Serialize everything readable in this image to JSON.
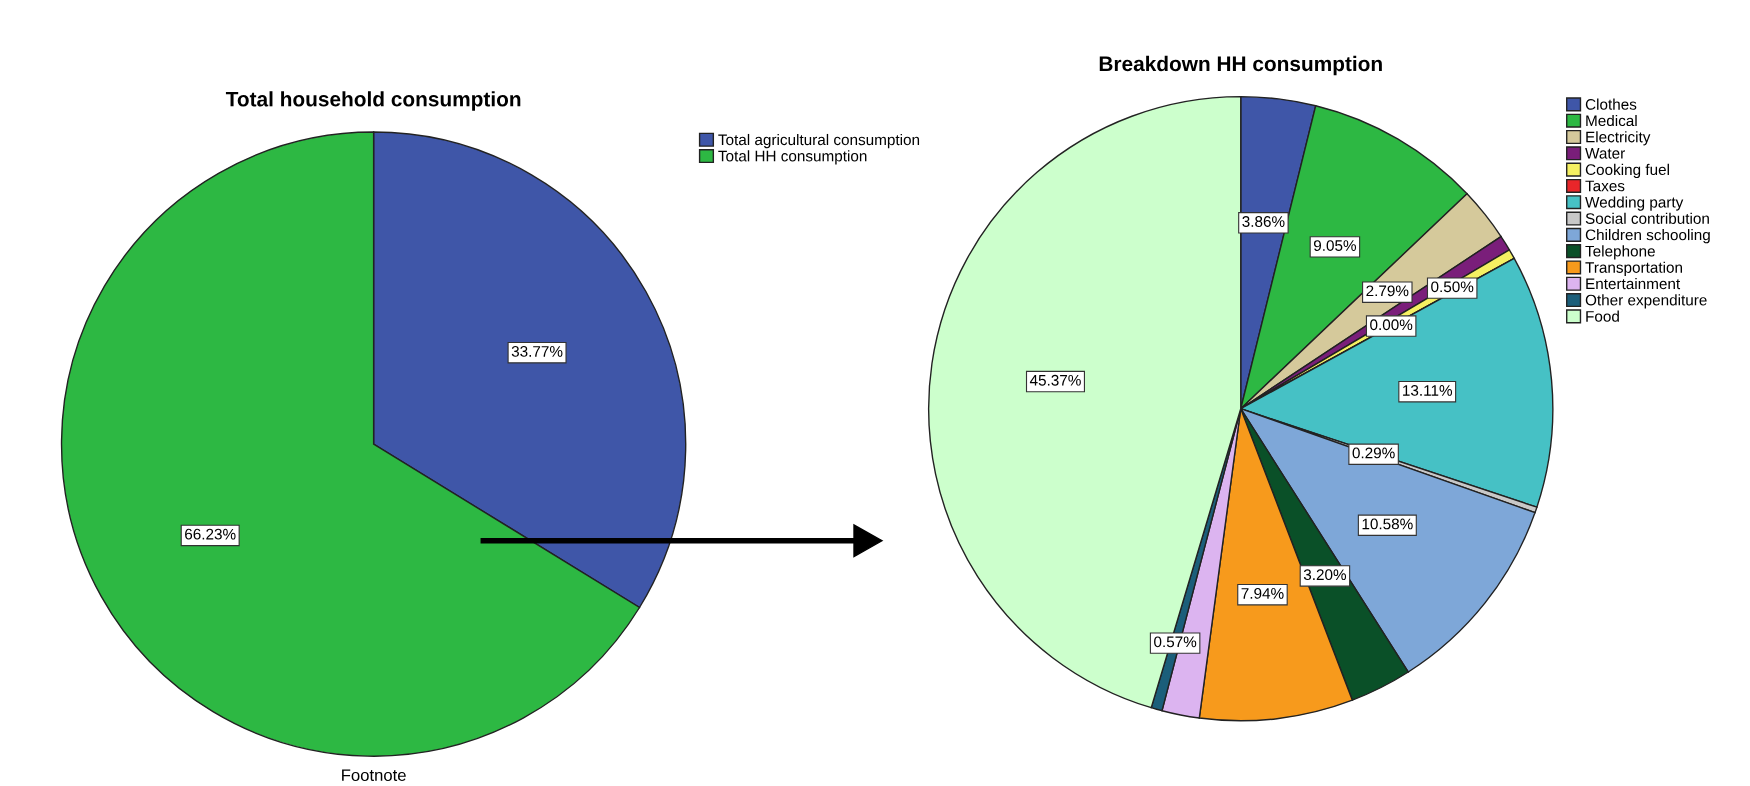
{
  "chart_data": [
    {
      "type": "pie",
      "title": "Total household consumption",
      "categories": [
        "Total agricultural consumption",
        "Total HH consumption"
      ],
      "values": [
        33.77,
        66.23
      ],
      "colors": [
        "#3f56a8",
        "#2db843"
      ],
      "value_labels": [
        "33.77%",
        "66.23%"
      ],
      "legend": "top right",
      "annotations": [
        "Footnote"
      ]
    },
    {
      "type": "pie",
      "title": "Breakdown HH consumption",
      "categories": [
        "Clothes",
        "Medical",
        "Electricity",
        "Water",
        "Cooking fuel",
        "Taxes",
        "Wedding party",
        "Social contribution",
        "Children schooling",
        "Telephone",
        "Transportation",
        "Entertainment",
        "Other expenditure",
        "Food"
      ],
      "values": [
        3.86,
        9.05,
        2.79,
        0.8,
        0.5,
        0.0,
        13.11,
        0.29,
        10.58,
        3.2,
        7.94,
        1.94,
        0.57,
        45.37
      ],
      "value_labels": [
        "3.86%",
        "9.05%",
        "2.79%",
        null,
        "0.50%",
        "0.00%",
        "13.11%",
        "0.29%",
        "10.58%",
        "3.20%",
        "7.94%",
        null,
        "0.57%",
        "45.37%"
      ],
      "colors": [
        "#3f56a8",
        "#2db843",
        "#d5c99b",
        "#7a1e7a",
        "#f5f062",
        "#e8262a",
        "#46c1c5",
        "#c8c8c8",
        "#7ea7d8",
        "#0a5028",
        "#f79a1c",
        "#dcb4f0",
        "#1b5e7a",
        "#ccffcc"
      ],
      "legend": "top right"
    }
  ]
}
